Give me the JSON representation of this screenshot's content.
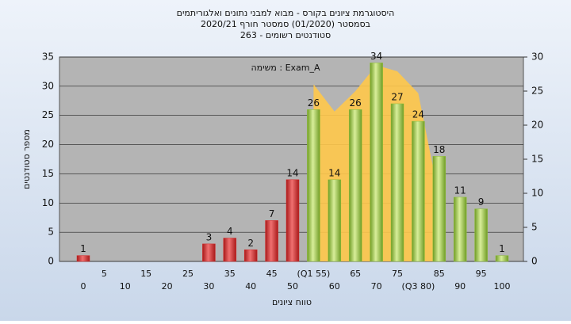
{
  "chart_data": {
    "type": "bar",
    "title": "היסטוגרמת ציונים בקורס - מבוא למבני נתונים ואלגוריתמים",
    "subtitle": "בסמסטר  (01/2020)  סמסטר חורף 2020/21",
    "subtitle2": "סטודנטים רשומים - 263",
    "annotation": "משימה : Exam_A",
    "y_label": "מספר סטודנטים",
    "x_label": "טווח ציונים",
    "categories": [
      "0",
      "5",
      "10",
      "15",
      "20",
      "25",
      "30",
      "35",
      "40",
      "45",
      "50",
      "(Q1 55)",
      "60",
      "65",
      "70",
      "75",
      "(Q3 80)",
      "85",
      "90",
      "95",
      "100"
    ],
    "values": [
      1,
      0,
      0,
      0,
      0,
      0,
      3,
      4,
      2,
      7,
      14,
      26,
      14,
      26,
      34,
      27,
      24,
      18,
      11,
      9,
      1
    ],
    "bar_colors": [
      "#d62a2a",
      "#d62a2a",
      "#d62a2a",
      "#d62a2a",
      "#d62a2a",
      "#d62a2a",
      "#d62a2a",
      "#d62a2a",
      "#d62a2a",
      "#d62a2a",
      "#d62a2a",
      "#8fbf3a",
      "#8fbf3a",
      "#8fbf3a",
      "#8fbf3a",
      "#8fbf3a",
      "#8fbf3a",
      "#8fbf3a",
      "#8fbf3a",
      "#8fbf3a",
      "#8fbf3a"
    ],
    "ylim": [
      0,
      35
    ],
    "yticks": [
      0,
      5,
      10,
      15,
      20,
      25,
      30,
      35
    ],
    "y2lim": [
      0,
      30
    ],
    "y2ticks": [
      0,
      5,
      10,
      15,
      20,
      25,
      30
    ],
    "grid": true,
    "area": {
      "axis": "y2",
      "x": [
        55,
        60,
        65,
        70,
        75,
        80,
        85
      ],
      "values": [
        26,
        22,
        25,
        28.8,
        27.9,
        24.7,
        9.3
      ],
      "color": "#ffc84a"
    }
  }
}
